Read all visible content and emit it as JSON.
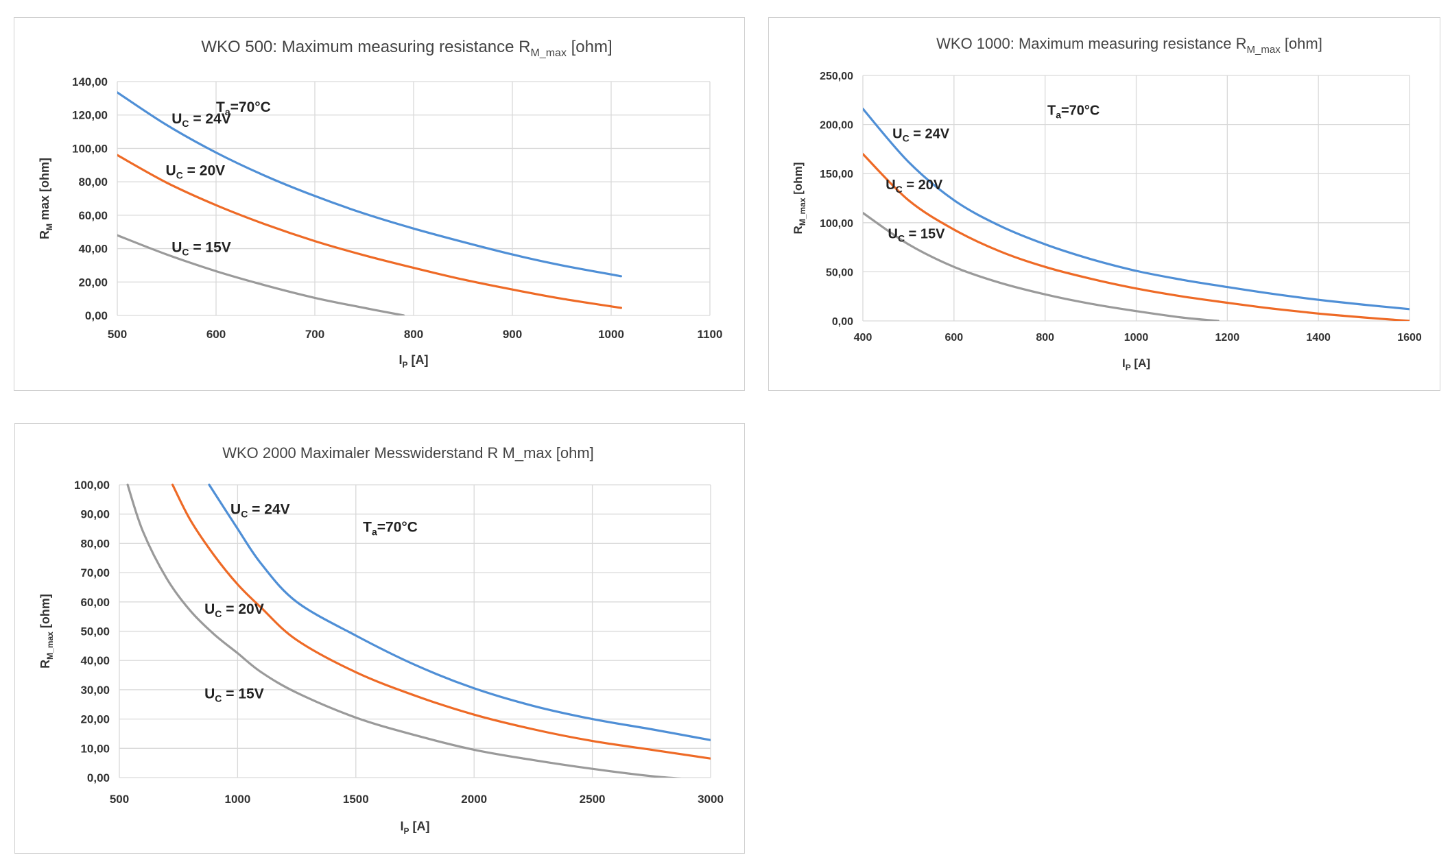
{
  "colors": {
    "uc24": "#4f8fd6",
    "uc20": "#ee6a26",
    "uc15": "#9a9a9a",
    "grid": "#d9d9d9"
  },
  "chart_data": [
    {
      "type": "line",
      "title_main": "WKO 500:  Maximum measuring resistance R",
      "title_sub": "M_max",
      "title_tail": "  [ohm]",
      "xlabel_main": "I",
      "xlabel_sub": "P",
      "xlabel_tail": " [A]",
      "ylabel_main": "R",
      "ylabel_sub": "M",
      "ylabel_tail": " max [ohm]",
      "xlim": [
        500,
        1100
      ],
      "ylim": [
        0,
        140
      ],
      "xticks": [
        500,
        600,
        700,
        800,
        900,
        1000,
        1100
      ],
      "xtick_labels": [
        "500",
        "600",
        "700",
        "800",
        "900",
        "1000",
        "1100"
      ],
      "yticks": [
        0,
        20,
        40,
        60,
        80,
        100,
        120,
        140
      ],
      "ytick_labels": [
        "0,00",
        "20,00",
        "40,00",
        "60,00",
        "80,00",
        "100,00",
        "120,00",
        "140,00"
      ],
      "grid": true,
      "annotations": [
        {
          "main": "T",
          "sub": "a",
          "tail": "=70°C",
          "x": 600,
          "y": 122
        },
        {
          "main": "U",
          "sub": "C",
          "tail": " = 24V",
          "x": 555,
          "y": 115
        },
        {
          "main": "U",
          "sub": "C",
          "tail": " = 20V",
          "x": 549,
          "y": 84
        },
        {
          "main": "U",
          "sub": "C",
          "tail": " = 15V",
          "x": 555,
          "y": 38
        }
      ],
      "series": [
        {
          "color_key": "uc24",
          "x": [
            500,
            550,
            600,
            650,
            700,
            750,
            800,
            850,
            900,
            950,
            1010
          ],
          "values": [
            133.5,
            114,
            97.5,
            83.5,
            71.5,
            61,
            52,
            44,
            36.5,
            30,
            23.5
          ]
        },
        {
          "color_key": "uc20",
          "x": [
            500,
            550,
            600,
            650,
            700,
            750,
            800,
            850,
            900,
            950,
            1010
          ],
          "values": [
            96,
            79.5,
            66,
            54.5,
            44.5,
            36,
            28.5,
            21.5,
            15.5,
            10,
            4.5
          ]
        },
        {
          "color_key": "uc15",
          "x": [
            500,
            550,
            600,
            650,
            700,
            750,
            790
          ],
          "values": [
            48,
            36.5,
            26.5,
            18,
            10.5,
            4.5,
            0
          ]
        }
      ]
    },
    {
      "type": "line",
      "title_main": "WKO 1000:  Maximum measuring resistance R",
      "title_sub": "M_max",
      "title_tail": "  [ohm]",
      "xlabel_main": "I",
      "xlabel_sub": "P",
      "xlabel_tail": " [A]",
      "ylabel_main": "R",
      "ylabel_sub": "M_max",
      "ylabel_tail": " [ohm]",
      "xlim": [
        400,
        1600
      ],
      "ylim": [
        0,
        250
      ],
      "xticks": [
        400,
        600,
        800,
        1000,
        1200,
        1400,
        1600
      ],
      "xtick_labels": [
        "400",
        "600",
        "800",
        "1000",
        "1200",
        "1400",
        "1600"
      ],
      "yticks": [
        0,
        50,
        100,
        150,
        200,
        250
      ],
      "ytick_labels": [
        "0,00",
        "50,00",
        "100,00",
        "150,00",
        "200,00",
        "250,00"
      ],
      "grid": true,
      "annotations": [
        {
          "main": "T",
          "sub": "a",
          "tail": "=70°C",
          "x": 805,
          "y": 210
        },
        {
          "main": "U",
          "sub": "C",
          "tail": " = 24V",
          "x": 465,
          "y": 186
        },
        {
          "main": "U",
          "sub": "C",
          "tail": " = 20V",
          "x": 450,
          "y": 134
        },
        {
          "main": "U",
          "sub": "C",
          "tail": " = 15V",
          "x": 455,
          "y": 84
        }
      ],
      "series": [
        {
          "color_key": "uc24",
          "x": [
            400,
            500,
            600,
            700,
            800,
            900,
            1000,
            1100,
            1200,
            1300,
            1400,
            1500,
            1600
          ],
          "values": [
            216,
            162,
            123,
            97,
            78,
            63,
            51,
            42,
            34.5,
            27.5,
            21.5,
            16.5,
            12
          ]
        },
        {
          "color_key": "uc20",
          "x": [
            400,
            500,
            600,
            700,
            800,
            900,
            1000,
            1100,
            1200,
            1300,
            1400,
            1500,
            1600
          ],
          "values": [
            170,
            123,
            93,
            71,
            55,
            43,
            33,
            25,
            18.5,
            12.5,
            7.5,
            3.5,
            0
          ]
        },
        {
          "color_key": "uc15",
          "x": [
            400,
            500,
            600,
            700,
            800,
            900,
            1000,
            1100,
            1180
          ],
          "values": [
            110,
            78,
            55,
            39,
            27,
            17.5,
            10,
            3.5,
            0
          ]
        }
      ]
    },
    {
      "type": "line",
      "title_main": "WKO 2000 Maximaler Messwiderstand R M_max [ohm]",
      "xlabel_main": "I",
      "xlabel_sub": "P",
      "xlabel_tail": " [A]",
      "ylabel_main": "R",
      "ylabel_sub": "M_max",
      "ylabel_tail": " [ohm]",
      "xlim": [
        500,
        3000
      ],
      "ylim": [
        0,
        100
      ],
      "xticks": [
        500,
        1000,
        1500,
        2000,
        2500,
        3000
      ],
      "xtick_labels": [
        "500",
        "1000",
        "1500",
        "2000",
        "2500",
        "3000"
      ],
      "yticks": [
        0,
        10,
        20,
        30,
        40,
        50,
        60,
        70,
        80,
        90,
        100
      ],
      "ytick_labels": [
        "0,00",
        "10,00",
        "20,00",
        "30,00",
        "40,00",
        "50,00",
        "60,00",
        "70,00",
        "80,00",
        "90,00",
        "100,00"
      ],
      "grid": true,
      "annotations": [
        {
          "main": "U",
          "sub": "C",
          "tail": " = 24V",
          "x": 970,
          "y": 90
        },
        {
          "main": "T",
          "sub": "a",
          "tail": "=70°C",
          "x": 1530,
          "y": 84
        },
        {
          "main": "U",
          "sub": "C",
          "tail": " = 20V",
          "x": 860,
          "y": 56
        },
        {
          "main": "U",
          "sub": "C",
          "tail": " = 15V",
          "x": 860,
          "y": 27
        }
      ],
      "series": [
        {
          "color_key": "uc24",
          "x": [
            880,
            1000,
            1100,
            1250,
            1500,
            1750,
            2000,
            2250,
            2500,
            2750,
            3000
          ],
          "values": [
            100,
            85,
            73,
            60,
            48.5,
            38.5,
            30.5,
            24.5,
            20,
            16.5,
            12.8
          ]
        },
        {
          "color_key": "uc20",
          "x": [
            725,
            800,
            900,
            1000,
            1100,
            1250,
            1500,
            1750,
            2000,
            2250,
            2500,
            2750,
            3000
          ],
          "values": [
            100,
            88,
            76,
            66,
            58,
            47,
            36,
            28,
            21.5,
            16.5,
            12.5,
            9.5,
            6.5
          ]
        },
        {
          "color_key": "uc15",
          "x": [
            535,
            600,
            700,
            800,
            900,
            1000,
            1100,
            1250,
            1500,
            1750,
            2000,
            2250,
            2500,
            2750,
            2900
          ],
          "values": [
            100,
            84,
            68,
            57,
            49,
            42.5,
            36,
            29,
            20.5,
            14.5,
            9.5,
            6,
            3,
            0.5,
            -0.5
          ]
        }
      ]
    }
  ]
}
